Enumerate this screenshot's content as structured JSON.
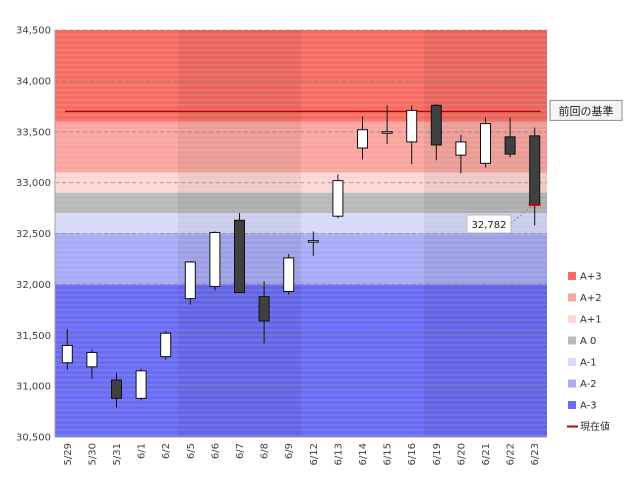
{
  "chart_data": {
    "type": "candlestick",
    "categories": [
      "5/29",
      "5/30",
      "5/31",
      "6/1",
      "6/2",
      "6/5",
      "6/6",
      "6/7",
      "6/8",
      "6/9",
      "6/12",
      "6/13",
      "6/14",
      "6/15",
      "6/16",
      "6/19",
      "6/20",
      "6/21",
      "6/22",
      "6/23"
    ],
    "candles": [
      {
        "open": 31230,
        "high": 31560,
        "low": 31160,
        "close": 31400
      },
      {
        "open": 31190,
        "high": 31360,
        "low": 31070,
        "close": 31330
      },
      {
        "open": 31060,
        "high": 31130,
        "low": 30790,
        "close": 30880
      },
      {
        "open": 30880,
        "high": 31170,
        "low": 30860,
        "close": 31150
      },
      {
        "open": 31290,
        "high": 31540,
        "low": 31260,
        "close": 31520
      },
      {
        "open": 31860,
        "high": 32230,
        "low": 31800,
        "close": 32220
      },
      {
        "open": 31980,
        "high": 32520,
        "low": 31940,
        "close": 32510
      },
      {
        "open": 32630,
        "high": 32700,
        "low": 31920,
        "close": 31920
      },
      {
        "open": 31880,
        "high": 32030,
        "low": 31420,
        "close": 31640
      },
      {
        "open": 31930,
        "high": 32300,
        "low": 31900,
        "close": 32260
      },
      {
        "open": 32420,
        "high": 32520,
        "low": 32280,
        "close": 32430
      },
      {
        "open": 32670,
        "high": 33080,
        "low": 32650,
        "close": 33020
      },
      {
        "open": 33340,
        "high": 33650,
        "low": 33230,
        "close": 33520
      },
      {
        "open": 33490,
        "high": 33760,
        "low": 33380,
        "close": 33500
      },
      {
        "open": 33400,
        "high": 33760,
        "low": 33180,
        "close": 33710
      },
      {
        "open": 33760,
        "high": 33770,
        "low": 33220,
        "close": 33370
      },
      {
        "open": 33270,
        "high": 33470,
        "low": 33090,
        "close": 33400
      },
      {
        "open": 33190,
        "high": 33640,
        "low": 33150,
        "close": 33580
      },
      {
        "open": 33450,
        "high": 33640,
        "low": 33250,
        "close": 33280
      },
      {
        "open": 33460,
        "high": 33540,
        "low": 32580,
        "close": 32782
      }
    ],
    "ylim": [
      30500,
      34500
    ],
    "yticks": [
      30500,
      31000,
      31500,
      32000,
      32500,
      33000,
      33500,
      34000,
      34500
    ],
    "ytick_labels": [
      "30,500",
      "31,000",
      "31,500",
      "32,000",
      "32,500",
      "33,000",
      "33,500",
      "34,000",
      "34,500"
    ],
    "week_shading": [
      [
        0,
        4
      ],
      [
        5,
        9
      ],
      [
        10,
        14
      ],
      [
        15,
        19
      ]
    ],
    "bands": [
      {
        "name": "A+3",
        "from": 33600,
        "to": 34500,
        "color": "#f76d63"
      },
      {
        "name": "A+2",
        "from": 33100,
        "to": 33600,
        "color": "#faa59f"
      },
      {
        "name": "A+1",
        "from": 32900,
        "to": 33100,
        "color": "#fcd6d3"
      },
      {
        "name": "A 0",
        "from": 32700,
        "to": 32900,
        "color": "#b8b8b8"
      },
      {
        "name": "A-1",
        "from": 32500,
        "to": 32700,
        "color": "#d7d9fa"
      },
      {
        "name": "A-2",
        "from": 32000,
        "to": 32500,
        "color": "#a8abf6"
      },
      {
        "name": "A-3",
        "from": 30500,
        "to": 32000,
        "color": "#6a6cf3"
      }
    ],
    "reference_line": {
      "label": "前回の基準",
      "value": 33700,
      "color": "#c00000"
    },
    "current_value": {
      "label": "現在値",
      "value": 32782,
      "display": "32,782",
      "color": "#c00000"
    },
    "legend": [
      "A+3",
      "A+2",
      "A+1",
      "A 0",
      "A-1",
      "A-2",
      "A-3",
      "現在値"
    ],
    "legend_placement": "right",
    "grid": true
  }
}
